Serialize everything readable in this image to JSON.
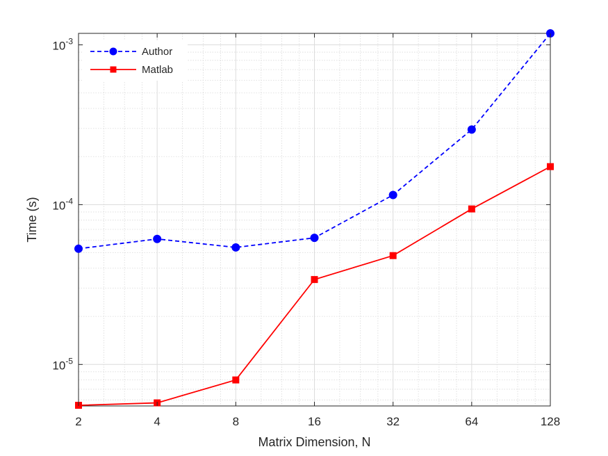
{
  "chart_data": {
    "type": "line",
    "title": "",
    "xlabel": "Matrix Dimension, N",
    "ylabel": "Time (s)",
    "x_scale": "log2",
    "y_scale": "log10",
    "xlim": [
      2,
      128
    ],
    "ylim": [
      5.5e-06,
      0.00118
    ],
    "x_ticks": [
      2,
      4,
      8,
      16,
      32,
      64,
      128
    ],
    "x_tick_labels": [
      "2",
      "4",
      "8",
      "16",
      "32",
      "64",
      "128"
    ],
    "y_ticks": [
      1e-05,
      0.0001,
      0.001
    ],
    "y_tick_labels": [
      {
        "base": "10",
        "exp": "-5"
      },
      {
        "base": "10",
        "exp": "-4"
      },
      {
        "base": "10",
        "exp": "-3"
      }
    ],
    "grid": true,
    "minor_grid": true,
    "legend_position": "top-left",
    "x": [
      2,
      4,
      8,
      16,
      32,
      64,
      128
    ],
    "series": [
      {
        "name": "Author",
        "color": "#0000ff",
        "line_style": "dashed",
        "marker": "circle",
        "values": [
          5.3e-05,
          6.1e-05,
          5.4e-05,
          6.2e-05,
          0.000115,
          0.000295,
          0.00118
        ]
      },
      {
        "name": "Matlab",
        "color": "#ff0000",
        "line_style": "solid",
        "marker": "square",
        "values": [
          5.55e-06,
          5.75e-06,
          8e-06,
          3.4e-05,
          4.8e-05,
          9.4e-05,
          0.000173
        ]
      }
    ]
  }
}
